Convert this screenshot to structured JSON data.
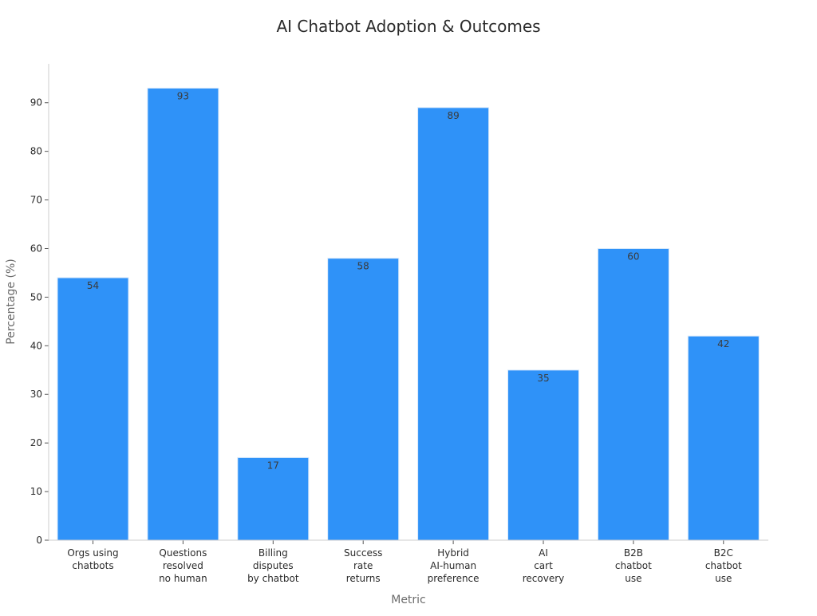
{
  "chart_data": {
    "type": "bar",
    "title": "AI Chatbot Adoption & Outcomes",
    "xlabel": "Metric",
    "ylabel": "Percentage (%)",
    "categories": [
      [
        "Orgs using",
        "chatbots"
      ],
      [
        "Questions",
        "resolved",
        "no human"
      ],
      [
        "Billing",
        "disputes",
        "by chatbot"
      ],
      [
        "Success",
        "rate",
        "returns"
      ],
      [
        "Hybrid",
        "AI-human",
        "preference"
      ],
      [
        "AI",
        "cart",
        "recovery"
      ],
      [
        "B2B",
        "chatbot",
        "use"
      ],
      [
        "B2C",
        "chatbot",
        "use"
      ]
    ],
    "values": [
      54,
      93,
      17,
      58,
      89,
      35,
      60,
      42
    ],
    "ylim": [
      0,
      98
    ],
    "yticks": [
      0,
      10,
      20,
      30,
      40,
      50,
      60,
      70,
      80,
      90
    ],
    "bar_color": "#2f92f8",
    "grid": false,
    "data_labels": true
  }
}
